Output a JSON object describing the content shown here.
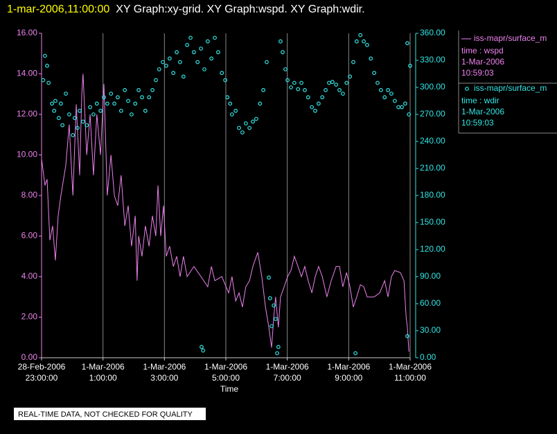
{
  "chart_data": {
    "type": "xy",
    "header_date": "1-mar-2006,11:00:00",
    "title": "XY Graph:xy-grid.  XY Graph:wspd.  XY Graph:wdir.",
    "xlabel": "Time",
    "note": "REAL-TIME DATA, NOT CHECKED FOR QUALITY",
    "grid": true,
    "legend": "right",
    "xlim": [
      0,
      12
    ],
    "xticks": [
      {
        "value": 0,
        "label": "28-Feb-2006\n23:00:00"
      },
      {
        "value": 2,
        "label": "1-Mar-2006\n1:00:00"
      },
      {
        "value": 4,
        "label": "1-Mar-2006\n3:00:00"
      },
      {
        "value": 6,
        "label": "1-Mar-2006\n5:00:00"
      },
      {
        "value": 8,
        "label": "1-Mar-2006\n7:00:00"
      },
      {
        "value": 10,
        "label": "1-Mar-2006\n9:00:00"
      },
      {
        "value": 12,
        "label": "1-Mar-2006\n11:00:00"
      }
    ],
    "ylim": [
      0,
      16
    ],
    "yticks": [
      {
        "value": 0,
        "label": "0.00"
      },
      {
        "value": 2,
        "label": "2.00"
      },
      {
        "value": 4,
        "label": "4.00"
      },
      {
        "value": 6,
        "label": "6.00"
      },
      {
        "value": 8,
        "label": "8.00"
      },
      {
        "value": 10,
        "label": "10.00"
      },
      {
        "value": 12,
        "label": "12.00"
      },
      {
        "value": 14,
        "label": "14.00"
      },
      {
        "value": 16,
        "label": "16.00"
      }
    ],
    "y2lim": [
      0,
      360
    ],
    "y2ticks": [
      {
        "value": 0,
        "label": "0.00"
      },
      {
        "value": 30,
        "label": "30.00"
      },
      {
        "value": 60,
        "label": "60.00"
      },
      {
        "value": 90,
        "label": "90.00"
      },
      {
        "value": 120,
        "label": "120.00"
      },
      {
        "value": 150,
        "label": "150.00"
      },
      {
        "value": 180,
        "label": "180.00"
      },
      {
        "value": 210,
        "label": "210.00"
      },
      {
        "value": 240,
        "label": "240.00"
      },
      {
        "value": 270,
        "label": "270.00"
      },
      {
        "value": 300,
        "label": "300.00"
      },
      {
        "value": 330,
        "label": "330.00"
      },
      {
        "value": 360,
        "label": "360.00"
      }
    ],
    "series": [
      {
        "name": "iss-mapr/surface_m",
        "color": "#ee82ee",
        "mark": "line",
        "axis": "y",
        "legend_lines": [
          "time : wspd",
          "1-Mar-2006",
          "10:59:03"
        ],
        "x": [
          0,
          0.11,
          0.18,
          0.27,
          0.36,
          0.45,
          0.54,
          0.63,
          0.79,
          0.9,
          1.02,
          1.13,
          1.24,
          1.31,
          1.35,
          1.47,
          1.58,
          1.69,
          1.8,
          1.92,
          2.03,
          2.14,
          2.26,
          2.37,
          2.48,
          2.59,
          2.71,
          2.82,
          2.93,
          3.05,
          3.11,
          3.16,
          3.27,
          3.38,
          3.5,
          3.61,
          3.72,
          3.79,
          3.88,
          3.97,
          4.06,
          4.17,
          4.29,
          4.4,
          4.51,
          4.62,
          4.74,
          4.96,
          5.19,
          5.41,
          5.53,
          5.64,
          5.87,
          6.09,
          6.2,
          6.32,
          6.43,
          6.54,
          6.65,
          6.77,
          6.88,
          7.04,
          7.17,
          7.29,
          7.4,
          7.49,
          7.56,
          7.62,
          7.71,
          7.78,
          7.9,
          8.01,
          8.12,
          8.23,
          8.35,
          8.46,
          8.57,
          8.68,
          8.8,
          8.91,
          9.02,
          9.14,
          9.29,
          9.43,
          9.59,
          9.7,
          9.81,
          9.93,
          10.04,
          10.15,
          10.26,
          10.38,
          10.49,
          10.6,
          10.83,
          11.01,
          11.17,
          11.28,
          11.39,
          11.5,
          11.68,
          11.8,
          11.87,
          11.91,
          11.96
        ],
        "values": [
          9.8,
          8.5,
          8.8,
          5.8,
          6.5,
          4.8,
          7.0,
          8.0,
          9.5,
          11.5,
          8.0,
          12.5,
          9.0,
          13.0,
          14.0,
          10.0,
          12.0,
          9.0,
          12.0,
          10.0,
          13.5,
          8.0,
          10.0,
          8.0,
          7.5,
          9.0,
          6.5,
          7.5,
          5.5,
          7.0,
          3.8,
          6.0,
          5.0,
          6.5,
          5.5,
          7.0,
          6.0,
          8.5,
          6.0,
          7.5,
          5.0,
          5.5,
          4.5,
          5.0,
          4.0,
          5.0,
          4.0,
          4.5,
          4.0,
          3.5,
          4.5,
          3.8,
          4.0,
          3.2,
          4.0,
          2.8,
          3.2,
          2.5,
          3.5,
          3.8,
          4.5,
          5.2,
          4.0,
          2.5,
          1.5,
          0.5,
          2.0,
          3.0,
          1.5,
          3.0,
          3.5,
          4.0,
          4.3,
          5.0,
          4.5,
          4.0,
          4.5,
          3.8,
          3.2,
          4.0,
          4.5,
          4.0,
          3.0,
          3.8,
          4.5,
          4.5,
          3.5,
          4.2,
          3.5,
          2.5,
          3.0,
          3.6,
          3.5,
          3.0,
          3.0,
          3.2,
          3.8,
          3.0,
          4.0,
          4.3,
          4.2,
          3.8,
          2.0,
          1.5,
          0.3
        ]
      },
      {
        "name": "iss-mapr/surface_m",
        "color": "#33e6e6",
        "mark": "circle",
        "axis": "y2",
        "legend_lines": [
          "time : wdir",
          "1-Mar-2006",
          "10:59:03"
        ],
        "x": [
          0.05,
          0.11,
          0.18,
          0.23,
          0.34,
          0.41,
          0.45,
          0.56,
          0.63,
          0.68,
          0.79,
          0.9,
          1.02,
          1.08,
          1.17,
          1.24,
          1.35,
          1.47,
          1.58,
          1.69,
          1.8,
          1.92,
          2.03,
          2.14,
          2.26,
          2.37,
          2.48,
          2.59,
          2.71,
          2.82,
          2.93,
          3.05,
          3.16,
          3.27,
          3.38,
          3.5,
          3.61,
          3.72,
          3.83,
          3.95,
          4.06,
          4.17,
          4.29,
          4.4,
          4.51,
          4.62,
          4.74,
          4.85,
          4.96,
          5.08,
          5.19,
          5.21,
          5.26,
          5.3,
          5.41,
          5.53,
          5.64,
          5.75,
          5.87,
          5.98,
          6.05,
          6.14,
          6.2,
          6.32,
          6.43,
          6.54,
          6.65,
          6.77,
          6.88,
          6.99,
          7.11,
          7.22,
          7.33,
          7.4,
          7.44,
          7.49,
          7.56,
          7.62,
          7.67,
          7.71,
          7.78,
          7.85,
          7.94,
          8.01,
          8.12,
          8.23,
          8.35,
          8.46,
          8.57,
          8.68,
          8.8,
          8.91,
          9.02,
          9.14,
          9.25,
          9.36,
          9.47,
          9.59,
          9.7,
          9.81,
          9.93,
          10.04,
          10.15,
          10.22,
          10.26,
          10.38,
          10.49,
          10.6,
          10.72,
          10.83,
          10.94,
          11.05,
          11.17,
          11.28,
          11.39,
          11.5,
          11.62,
          11.73,
          11.84,
          11.91,
          11.91,
          11.96,
          12.0
        ],
        "values": [
          308,
          335,
          324,
          305,
          282,
          274,
          285,
          266,
          282,
          258,
          293,
          270,
          247,
          266,
          255,
          274,
          262,
          258,
          278,
          270,
          282,
          274,
          289,
          282,
          293,
          282,
          289,
          274,
          297,
          285,
          270,
          282,
          297,
          289,
          274,
          289,
          297,
          308,
          320,
          328,
          324,
          332,
          316,
          339,
          328,
          312,
          347,
          355,
          339,
          328,
          343,
          12,
          8,
          320,
          351,
          332,
          355,
          339,
          316,
          308,
          289,
          282,
          270,
          274,
          255,
          250,
          260,
          255,
          262,
          265,
          282,
          297,
          328,
          89,
          66,
          35,
          58,
          43,
          5,
          12,
          351,
          339,
          320,
          308,
          300,
          305,
          298,
          305,
          297,
          289,
          278,
          274,
          282,
          289,
          297,
          305,
          306,
          303,
          297,
          293,
          305,
          312,
          328,
          5,
          351,
          358,
          351,
          347,
          332,
          316,
          305,
          297,
          289,
          297,
          293,
          285,
          278,
          278,
          282,
          24,
          349,
          270,
          324
        ]
      }
    ]
  }
}
